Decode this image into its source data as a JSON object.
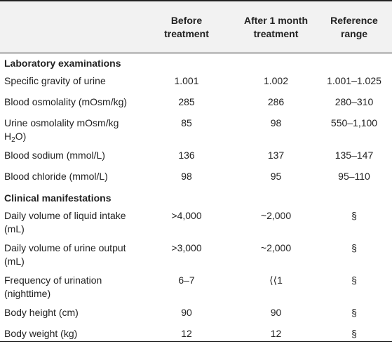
{
  "header": {
    "col1": "",
    "col2_line1": "Before",
    "col2_line2": "treatment",
    "col3_line1": "After 1 month",
    "col3_line2": "treatment",
    "col4_line1": "Reference",
    "col4_line2": "range"
  },
  "sections": {
    "lab": "Laboratory examinations",
    "clinical": "Clinical manifestations"
  },
  "lab_rows": [
    {
      "label": "Specific gravity of urine",
      "before": "1.001",
      "after": "1.002",
      "ref": "1.001–1.025"
    },
    {
      "label": "Blood osmolality (mOsm/kg)",
      "before": "285",
      "after": "286",
      "ref": "280–310"
    },
    {
      "label_line1": "Urine osmolality mOsm/kg",
      "label_h": "H",
      "label_sub": "2",
      "label_tail": "O)",
      "before": "85",
      "after": "98",
      "ref": "550–1,100"
    },
    {
      "label": "Blood sodium (mmol/L)",
      "before": "136",
      "after": "137",
      "ref": "135–147"
    },
    {
      "label": "Blood chloride (mmol/L)",
      "before": "98",
      "after": "95",
      "ref": "95–110"
    }
  ],
  "clinical_rows": [
    {
      "label_line1": "Daily volume of liquid intake",
      "label_line2": "(mL)",
      "before": ">4,000",
      "after": "~2,000",
      "ref": "§"
    },
    {
      "label_line1": "Daily volume of urine output",
      "label_line2": "(mL)",
      "before": ">3,000",
      "after": "~2,000",
      "ref": "§"
    },
    {
      "label_line1": "Frequency of urination",
      "label_line2": "(nighttime)",
      "before": "6–7",
      "after": "⟨⟨1",
      "ref": "§"
    },
    {
      "label": "Body height (cm)",
      "before": "90",
      "after": "90",
      "ref": "§"
    },
    {
      "label": "Body weight (kg)",
      "before": "12",
      "after": "12",
      "ref": "§"
    }
  ]
}
